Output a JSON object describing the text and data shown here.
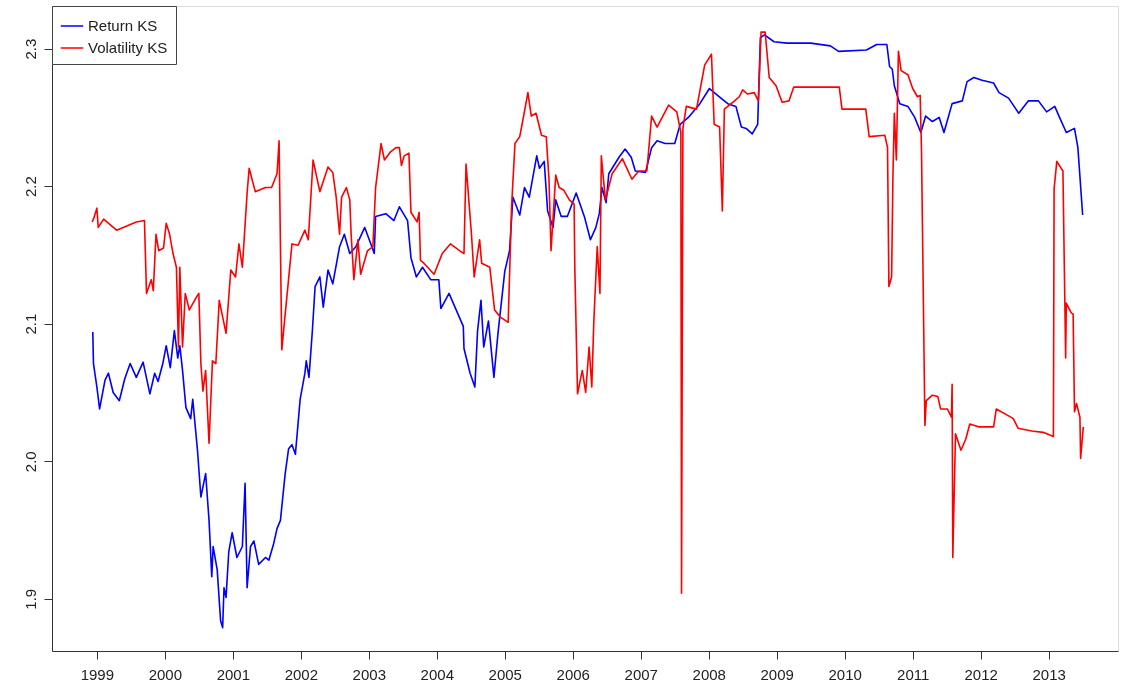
{
  "chart_data": {
    "type": "line",
    "xlim": [
      1998.34,
      2014.02
    ],
    "ylim": [
      1.862,
      2.331
    ],
    "xticks": [
      1999,
      2000,
      2001,
      2002,
      2003,
      2004,
      2005,
      2006,
      2007,
      2008,
      2009,
      2010,
      2011,
      2012,
      2013
    ],
    "yticks": [
      1.9,
      {
        "value": 2.0,
        "label": "2.0"
      },
      2.1,
      2.2,
      2.3
    ],
    "grid": false,
    "legend": "top left",
    "line_style": "solid",
    "marker": "none",
    "series": [
      {
        "name": "Return KS",
        "color": "#0000ff",
        "x": [
          1998.94,
          1998.95,
          1999.0,
          1999.04,
          1999.12,
          1999.17,
          1999.24,
          1999.33,
          1999.41,
          1999.49,
          1999.58,
          1999.68,
          1999.78,
          1999.85,
          1999.9,
          1999.97,
          2000.02,
          2000.08,
          2000.14,
          2000.19,
          2000.22,
          2000.26,
          2000.31,
          2000.38,
          2000.41,
          2000.48,
          2000.53,
          2000.6,
          2000.65,
          2000.69,
          2000.71,
          2000.77,
          2000.82,
          2000.85,
          2000.87,
          2000.9,
          2000.94,
          2000.99,
          2001.06,
          2001.14,
          2001.18,
          2001.21,
          2001.26,
          2001.31,
          2001.38,
          2001.48,
          2001.53,
          2001.6,
          2001.65,
          2001.7,
          2001.77,
          2001.82,
          2001.87,
          2001.92,
          2001.99,
          2002.06,
          2002.08,
          2002.12,
          2002.17,
          2002.21,
          2002.28,
          2002.33,
          2002.4,
          2002.47,
          2002.57,
          2002.64,
          2002.72,
          2002.81,
          2002.94,
          2003.03,
          2003.08,
          2003.1,
          2003.25,
          2003.37,
          2003.45,
          2003.57,
          2003.62,
          2003.7,
          2003.79,
          2003.91,
          2004.03,
          2004.06,
          2004.18,
          2004.39,
          2004.4,
          2004.49,
          2004.56,
          2004.6,
          2004.65,
          2004.69,
          2004.76,
          2004.84,
          2004.9,
          2005.0,
          2005.07,
          2005.12,
          2005.22,
          2005.29,
          2005.36,
          2005.47,
          2005.51,
          2005.58,
          2005.63,
          2005.71,
          2005.75,
          2005.83,
          2005.92,
          2006.05,
          2006.17,
          2006.26,
          2006.34,
          2006.39,
          2006.43,
          2006.49,
          2006.53,
          2006.68,
          2006.77,
          2006.86,
          2006.92,
          2007.07,
          2007.16,
          2007.24,
          2007.36,
          2007.5,
          2007.58,
          2007.7,
          2007.87,
          2008.01,
          2008.13,
          2008.28,
          2008.4,
          2008.48,
          2008.55,
          2008.64,
          2008.72,
          2008.76,
          2008.82,
          2008.96,
          2009.15,
          2009.5,
          2009.79,
          2009.91,
          2010.32,
          2010.47,
          2010.62,
          2010.66,
          2010.7,
          2010.73,
          2010.81,
          2010.93,
          2011.03,
          2011.12,
          2011.19,
          2011.29,
          2011.39,
          2011.46,
          2011.58,
          2011.73,
          2011.8,
          2011.9,
          2012.02,
          2012.19,
          2012.27,
          2012.41,
          2012.56,
          2012.7,
          2012.85,
          2012.97,
          2013.09,
          2013.16,
          2013.26,
          2013.38,
          2013.43,
          2013.5
        ],
        "values": [
          2.094,
          2.071,
          2.054,
          2.038,
          2.059,
          2.064,
          2.05,
          2.044,
          2.06,
          2.071,
          2.061,
          2.072,
          2.049,
          2.064,
          2.058,
          2.071,
          2.084,
          2.068,
          2.095,
          2.075,
          2.084,
          2.066,
          2.039,
          2.031,
          2.045,
          2.008,
          1.974,
          1.991,
          1.957,
          1.916,
          1.938,
          1.921,
          1.884,
          1.879,
          1.908,
          1.901,
          1.934,
          1.948,
          1.93,
          1.938,
          1.984,
          1.908,
          1.938,
          1.942,
          1.925,
          1.93,
          1.928,
          1.94,
          1.951,
          1.957,
          1.991,
          2.009,
          2.012,
          2.005,
          2.045,
          2.064,
          2.073,
          2.061,
          2.095,
          2.127,
          2.134,
          2.112,
          2.139,
          2.129,
          2.156,
          2.165,
          2.151,
          2.156,
          2.17,
          2.158,
          2.151,
          2.178,
          2.18,
          2.175,
          2.185,
          2.175,
          2.148,
          2.134,
          2.141,
          2.132,
          2.132,
          2.111,
          2.122,
          2.098,
          2.082,
          2.064,
          2.054,
          2.095,
          2.117,
          2.083,
          2.102,
          2.061,
          2.093,
          2.138,
          2.153,
          2.192,
          2.179,
          2.199,
          2.192,
          2.222,
          2.213,
          2.218,
          2.182,
          2.17,
          2.19,
          2.178,
          2.178,
          2.195,
          2.178,
          2.161,
          2.17,
          2.18,
          2.199,
          2.188,
          2.209,
          2.221,
          2.227,
          2.221,
          2.211,
          2.21,
          2.228,
          2.233,
          2.231,
          2.231,
          2.245,
          2.25,
          2.26,
          2.271,
          2.266,
          2.26,
          2.258,
          2.243,
          2.242,
          2.238,
          2.245,
          2.308,
          2.31,
          2.305,
          2.304,
          2.304,
          2.302,
          2.298,
          2.299,
          2.303,
          2.303,
          2.287,
          2.285,
          2.273,
          2.26,
          2.258,
          2.25,
          2.239,
          2.251,
          2.247,
          2.25,
          2.239,
          2.26,
          2.262,
          2.276,
          2.279,
          2.277,
          2.275,
          2.268,
          2.264,
          2.253,
          2.262,
          2.262,
          2.254,
          2.258,
          2.25,
          2.239,
          2.242,
          2.228,
          2.179
        ]
      },
      {
        "name": "Volatility KS",
        "color": "#ff0000",
        "x": [
          1998.93,
          1998.95,
          1999.0,
          1999.02,
          1999.1,
          1999.29,
          1999.44,
          1999.58,
          1999.7,
          1999.73,
          1999.8,
          1999.83,
          1999.87,
          1999.91,
          1999.98,
          2000.02,
          2000.07,
          2000.12,
          2000.17,
          2000.2,
          2000.22,
          2000.26,
          2000.3,
          2000.36,
          2000.46,
          2000.5,
          2000.53,
          2000.56,
          2000.6,
          2000.65,
          2000.7,
          2000.75,
          2000.8,
          2000.9,
          2000.97,
          2001.04,
          2001.09,
          2001.14,
          2001.21,
          2001.24,
          2001.33,
          2001.48,
          2001.57,
          2001.65,
          2001.68,
          2001.72,
          2001.77,
          2001.87,
          2001.96,
          2002.06,
          2002.11,
          2002.18,
          2002.28,
          2002.4,
          2002.47,
          2002.52,
          2002.57,
          2002.6,
          2002.67,
          2002.72,
          2002.74,
          2002.78,
          2002.84,
          2002.88,
          2002.98,
          2003.06,
          2003.1,
          2003.18,
          2003.23,
          2003.32,
          2003.4,
          2003.45,
          2003.48,
          2003.52,
          2003.59,
          2003.62,
          2003.71,
          2003.74,
          2003.76,
          2003.81,
          2003.96,
          2004.08,
          2004.2,
          2004.34,
          2004.4,
          2004.43,
          2004.51,
          2004.55,
          2004.63,
          2004.66,
          2004.78,
          2004.85,
          2004.93,
          2005.05,
          2005.1,
          2005.15,
          2005.22,
          2005.27,
          2005.34,
          2005.39,
          2005.46,
          2005.54,
          2005.61,
          2005.65,
          2005.68,
          2005.75,
          2005.8,
          2005.87,
          2005.95,
          2006.02,
          2006.03,
          2006.07,
          2006.14,
          2006.19,
          2006.24,
          2006.28,
          2006.31,
          2006.36,
          2006.4,
          2006.42,
          2006.48,
          2006.58,
          2006.73,
          2006.87,
          2006.97,
          2007.09,
          2007.16,
          2007.24,
          2007.41,
          2007.53,
          2007.59,
          2007.6,
          2007.62,
          2007.67,
          2007.82,
          2007.94,
          2008.04,
          2008.08,
          2008.16,
          2008.2,
          2008.23,
          2008.38,
          2008.45,
          2008.5,
          2008.57,
          2008.67,
          2008.73,
          2008.77,
          2008.83,
          2008.89,
          2008.99,
          2009.08,
          2009.18,
          2009.25,
          2009.59,
          2009.92,
          2009.96,
          2010.31,
          2010.36,
          2010.59,
          2010.63,
          2010.65,
          2010.69,
          2010.71,
          2010.73,
          2010.76,
          2010.79,
          2010.83,
          2010.93,
          2011.0,
          2011.07,
          2011.11,
          2011.13,
          2011.18,
          2011.2,
          2011.29,
          2011.37,
          2011.41,
          2011.51,
          2011.57,
          2011.58,
          2011.59,
          2011.63,
          2011.71,
          2011.78,
          2011.84,
          2011.97,
          2012.19,
          2012.23,
          2012.41,
          2012.48,
          2012.55,
          2012.75,
          2012.92,
          2013.07,
          2013.08,
          2013.12,
          2013.21,
          2013.25,
          2013.26,
          2013.33,
          2013.36,
          2013.38,
          2013.41,
          2013.46,
          2013.47,
          2013.51
        ],
        "values": [
          2.174,
          2.176,
          2.184,
          2.17,
          2.176,
          2.168,
          2.171,
          2.174,
          2.175,
          2.122,
          2.132,
          2.124,
          2.165,
          2.153,
          2.155,
          2.173,
          2.165,
          2.151,
          2.141,
          2.083,
          2.141,
          2.083,
          2.122,
          2.11,
          2.119,
          2.122,
          2.071,
          2.051,
          2.066,
          2.013,
          2.073,
          2.071,
          2.117,
          2.093,
          2.139,
          2.134,
          2.158,
          2.141,
          2.195,
          2.213,
          2.196,
          2.199,
          2.199,
          2.209,
          2.233,
          2.081,
          2.107,
          2.158,
          2.157,
          2.168,
          2.161,
          2.219,
          2.196,
          2.214,
          2.21,
          2.192,
          2.165,
          2.192,
          2.199,
          2.19,
          2.165,
          2.132,
          2.161,
          2.136,
          2.153,
          2.156,
          2.199,
          2.231,
          2.219,
          2.225,
          2.228,
          2.228,
          2.215,
          2.222,
          2.224,
          2.181,
          2.174,
          2.181,
          2.146,
          2.144,
          2.136,
          2.151,
          2.158,
          2.153,
          2.151,
          2.216,
          2.165,
          2.134,
          2.161,
          2.144,
          2.141,
          2.11,
          2.105,
          2.101,
          2.185,
          2.231,
          2.236,
          2.249,
          2.268,
          2.251,
          2.253,
          2.237,
          2.236,
          2.205,
          2.153,
          2.208,
          2.199,
          2.197,
          2.19,
          2.187,
          2.141,
          2.049,
          2.066,
          2.05,
          2.083,
          2.054,
          2.102,
          2.156,
          2.122,
          2.222,
          2.19,
          2.209,
          2.22,
          2.205,
          2.211,
          2.211,
          2.251,
          2.243,
          2.259,
          2.254,
          2.239,
          1.904,
          2.242,
          2.258,
          2.256,
          2.288,
          2.296,
          2.245,
          2.243,
          2.182,
          2.256,
          2.262,
          2.265,
          2.27,
          2.267,
          2.268,
          2.262,
          2.312,
          2.312,
          2.279,
          2.273,
          2.261,
          2.262,
          2.272,
          2.272,
          2.272,
          2.256,
          2.256,
          2.236,
          2.237,
          2.228,
          2.127,
          2.134,
          2.209,
          2.253,
          2.219,
          2.298,
          2.284,
          2.281,
          2.271,
          2.265,
          2.266,
          2.225,
          2.026,
          2.044,
          2.048,
          2.047,
          2.038,
          2.038,
          2.032,
          2.056,
          1.93,
          2.02,
          2.008,
          2.016,
          2.027,
          2.025,
          2.025,
          2.038,
          2.033,
          2.031,
          2.024,
          2.022,
          2.021,
          2.018,
          2.198,
          2.218,
          2.211,
          2.075,
          2.115,
          2.108,
          2.107,
          2.036,
          2.042,
          2.032,
          2.002,
          2.025
        ]
      }
    ]
  }
}
